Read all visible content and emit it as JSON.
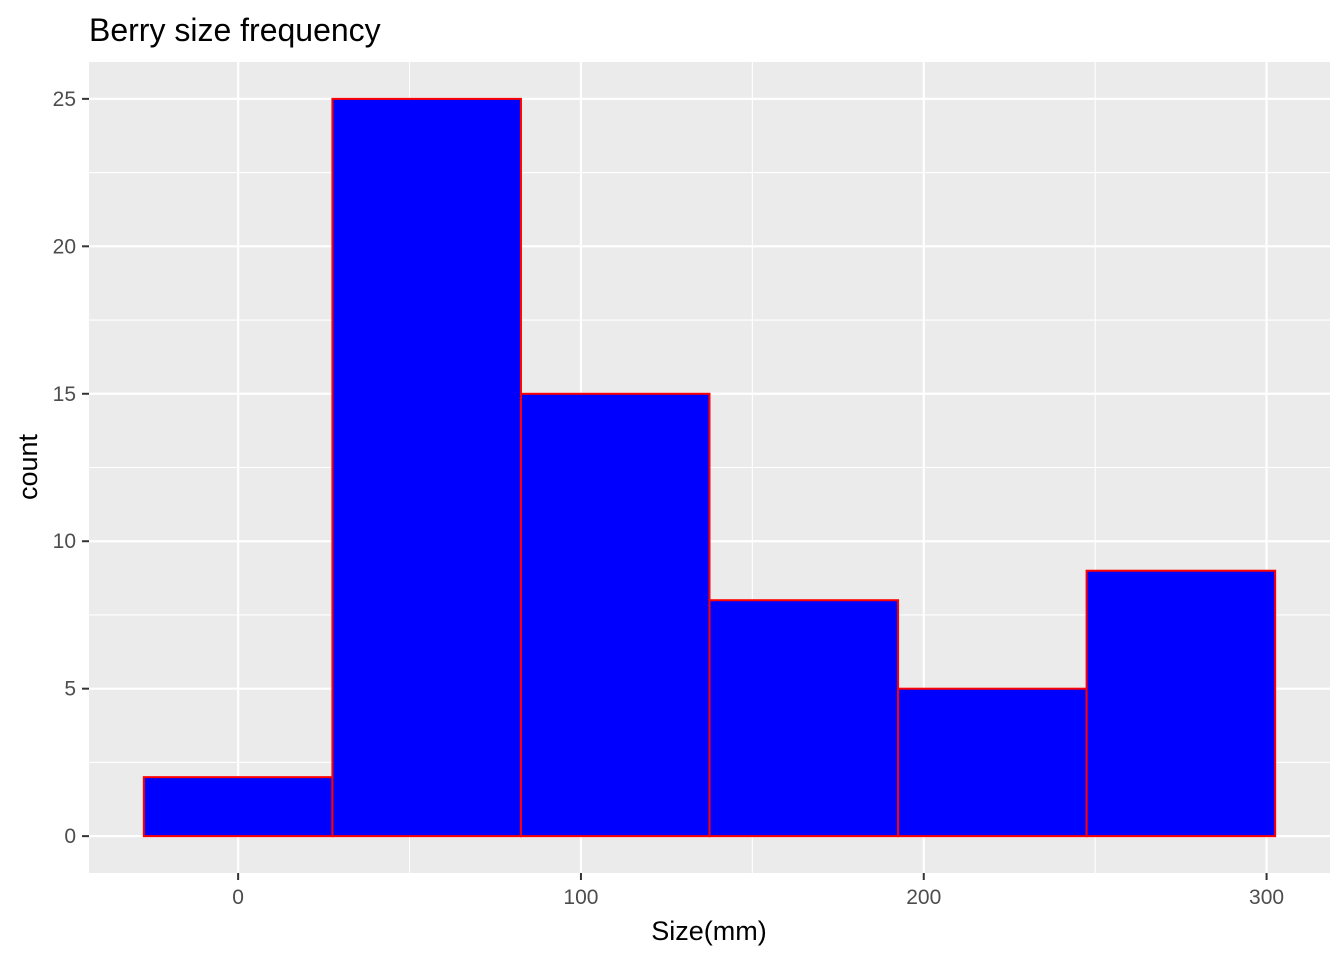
{
  "chart_data": {
    "type": "bar",
    "subtype": "histogram",
    "title": "Berry size frequency",
    "xlabel": "Size(mm)",
    "ylabel": "count",
    "bins": [
      {
        "x_start": -27.5,
        "x_end": 27.5,
        "count": 2
      },
      {
        "x_start": 27.5,
        "x_end": 82.5,
        "count": 25
      },
      {
        "x_start": 82.5,
        "x_end": 137.5,
        "count": 15
      },
      {
        "x_start": 137.5,
        "x_end": 192.5,
        "count": 8
      },
      {
        "x_start": 192.5,
        "x_end": 247.5,
        "count": 5
      },
      {
        "x_start": 247.5,
        "x_end": 302.5,
        "count": 9
      }
    ],
    "xlim": [
      -43.5,
      318.5
    ],
    "ylim": [
      -1.25,
      26.25
    ],
    "x_ticks": [
      0,
      100,
      200,
      300
    ],
    "x_tick_labels": [
      "0",
      "100",
      "200",
      "300"
    ],
    "y_ticks": [
      0,
      5,
      10,
      15,
      20,
      25
    ],
    "y_tick_labels": [
      "0",
      "5",
      "10",
      "15",
      "20",
      "25"
    ],
    "grid": true,
    "legend": "none",
    "colors": {
      "bar_fill": "#0000ff",
      "bar_outline": "#ff0000",
      "panel_background": "#ebebeb",
      "grid": "#ffffff",
      "tick_text": "#4d4d4d"
    }
  }
}
